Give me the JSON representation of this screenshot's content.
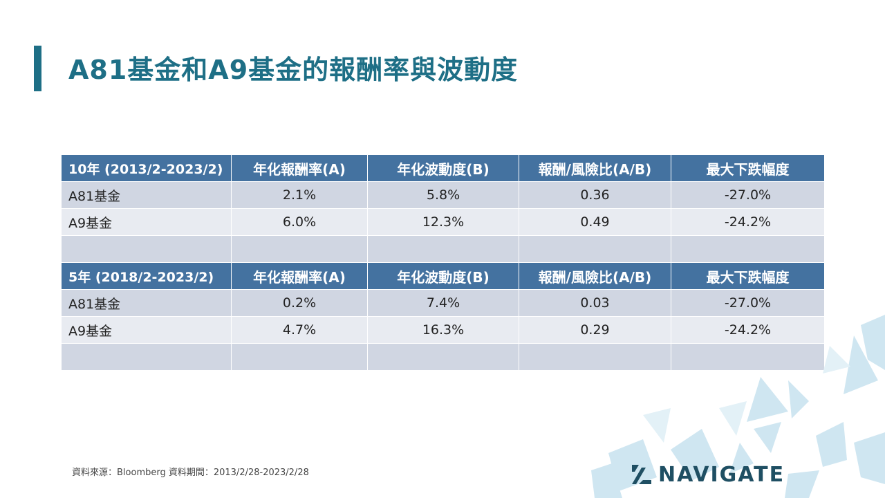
{
  "slide": {
    "title": "A81基金和A9基金的報酬率與波動度",
    "source_note": "資料來源：Bloomberg 資料期間：2013/2/28-2023/2/28",
    "logo_text": "NAVIGATE",
    "colors": {
      "title": "#1e6f86",
      "header_bg": "#4472a0",
      "row_dark": "#d0d6e2",
      "row_light": "#e8ebf1",
      "negative": "#e01b1b"
    }
  },
  "table": {
    "ten_year": {
      "header": [
        "10年 (2013/2-2023/2)",
        "年化報酬率(A)",
        "年化波動度(B)",
        "報酬/風險比(A/B)",
        "最大下跌幅度"
      ],
      "rows": [
        [
          "A81基金",
          "2.1%",
          "5.8%",
          "0.36",
          "-27.0%"
        ],
        [
          "A9基金",
          "6.0%",
          "12.3%",
          "0.49",
          "-24.2%"
        ]
      ]
    },
    "five_year": {
      "header": [
        "5年 (2018/2-2023/2)",
        "年化報酬率(A)",
        "年化波動度(B)",
        "報酬/風險比(A/B)",
        "最大下跌幅度"
      ],
      "rows": [
        [
          "A81基金",
          "0.2%",
          "7.4%",
          "0.03",
          "-27.0%"
        ],
        [
          "A9基金",
          "4.7%",
          "16.3%",
          "0.29",
          "-24.2%"
        ]
      ]
    }
  }
}
